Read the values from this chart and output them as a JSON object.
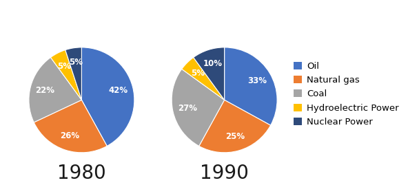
{
  "pie1_label": "1980",
  "pie2_label": "1990",
  "categories": [
    "Oil",
    "Natural gas",
    "Coal",
    "Hydroelectric Power",
    "Nuclear Power"
  ],
  "colors": [
    "#4472C4",
    "#ED7D31",
    "#A5A5A5",
    "#FFC000",
    "#2E4A7A"
  ],
  "values_1980": [
    42,
    26,
    22,
    5,
    5
  ],
  "values_1990": [
    33,
    25,
    27,
    5,
    10
  ],
  "startangle_1980": 90,
  "startangle_1990": 90,
  "label_fontsize": 8.5,
  "title_fontsize": 20,
  "legend_fontsize": 9.5,
  "background_color": "#ffffff",
  "title_color": "#1a1a1a",
  "legend_marker_size": 8
}
